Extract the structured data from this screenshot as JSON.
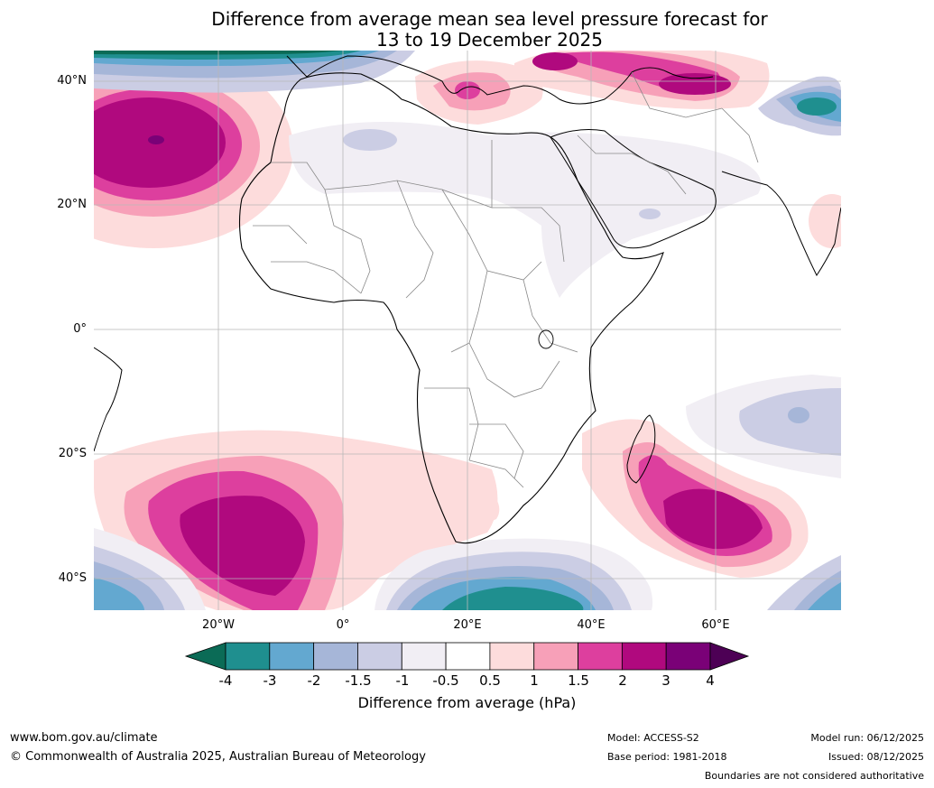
{
  "title": {
    "line1": "Difference from average mean sea level pressure forecast for",
    "line2": "13 to 19 December 2025"
  },
  "map": {
    "region": "Africa",
    "lat_labels": [
      "40°N",
      "20°N",
      "0°",
      "20°S",
      "40°S"
    ],
    "lon_labels": [
      "20°W",
      "0°",
      "20°E",
      "40°E",
      "60°E"
    ],
    "anomalies": [
      {
        "name": "north-atlantic-high",
        "level": 3
      },
      {
        "name": "south-atlantic-high",
        "level": 3
      },
      {
        "name": "south-indian-ocean-high",
        "level": 3
      },
      {
        "name": "mediterranean-high",
        "level": 2
      },
      {
        "name": "caspian-high",
        "level": 2
      },
      {
        "name": "southern-ocean-low",
        "level": -3
      },
      {
        "name": "central-asia-low",
        "level": -4
      }
    ]
  },
  "colorbar": {
    "label": "Difference from average (hPa)",
    "ticks": [
      "-4",
      "-3",
      "-2",
      "-1.5",
      "-1",
      "-0.5",
      "0.5",
      "1",
      "1.5",
      "2",
      "3",
      "4"
    ],
    "colors": {
      "below_min": "#0b6b56",
      "bins": [
        "#1f8f8f",
        "#63a8d0",
        "#a6b6d8",
        "#cbcde4",
        "#f1eef4",
        "#ffffff",
        "#fddcdc",
        "#f7a0b8",
        "#dd3f9e",
        "#b0097e",
        "#7a0177"
      ],
      "above_max": "#4d0055"
    }
  },
  "footer": {
    "website": "www.bom.gov.au/climate",
    "copyright": "© Commonwealth of Australia 2025, Australian Bureau of Meteorology",
    "model": "Model: ACCESS-S2",
    "base_period": "Base period: 1981-2018",
    "model_run": "Model run: 06/12/2025",
    "issued": "Issued: 08/12/2025",
    "disclaimer": "Boundaries are not considered authoritative"
  }
}
